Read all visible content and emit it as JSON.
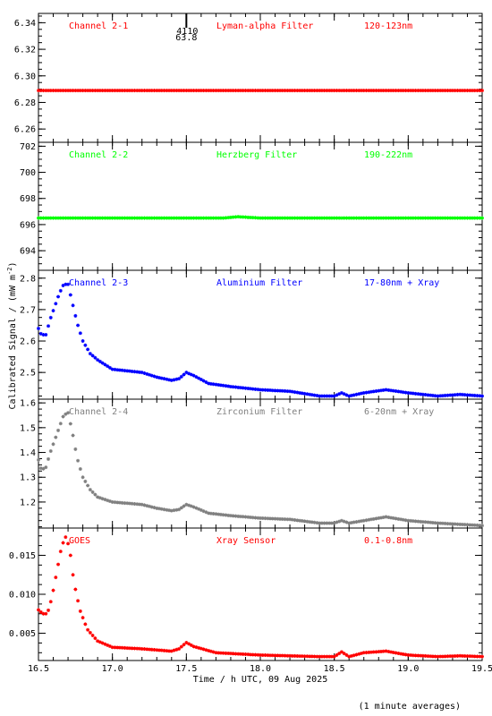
{
  "chart_data": {
    "type": "scatter",
    "xlabel": "Time / h UTC, 09 Aug 2025",
    "ylabel": "Calibrated Signal / (mW m",
    "ylabel_sup": "-2",
    "ylabel_close": ")",
    "footnote": "(1 minute averages)",
    "xlim": [
      16.5,
      19.5
    ],
    "xticks": [
      16.5,
      17.0,
      17.5,
      18.0,
      18.5,
      19.0,
      19.5
    ],
    "xtick_labels": [
      "16.5",
      "17.0",
      "17.5",
      "18.0",
      "18.5",
      "19.0",
      "19.5"
    ],
    "panels": [
      {
        "channel": "Channel 2-1",
        "filter": "Lyman-alpha Filter",
        "band": "120-123nm",
        "color": "#ff0000",
        "ylim": [
          6.25,
          6.347
        ],
        "yticks": [
          6.26,
          6.28,
          6.3,
          6.32,
          6.34
        ],
        "ytick_labels": [
          "6.26",
          "6.28",
          "6.30",
          "6.32",
          "6.34"
        ],
        "marker": {
          "x": 17.5,
          "label_top": "4110",
          "label_bottom": "63.8"
        },
        "points": [
          [
            16.5,
            6.289
          ],
          [
            16.75,
            6.289
          ],
          [
            17.0,
            6.289
          ],
          [
            17.25,
            6.289
          ],
          [
            17.5,
            6.289
          ],
          [
            17.75,
            6.289
          ],
          [
            18.0,
            6.289
          ],
          [
            18.25,
            6.289
          ],
          [
            18.5,
            6.289
          ],
          [
            18.75,
            6.289
          ],
          [
            19.0,
            6.289
          ],
          [
            19.25,
            6.289
          ],
          [
            19.5,
            6.289
          ]
        ]
      },
      {
        "channel": "Channel 2-2",
        "filter": "Herzberg Filter",
        "band": "190-222nm",
        "color": "#00ff00",
        "ylim": [
          692.5,
          702.3
        ],
        "yticks": [
          694,
          696,
          698,
          700,
          702
        ],
        "ytick_labels": [
          "694",
          "696",
          "698",
          "700",
          "702"
        ],
        "points": [
          [
            16.5,
            696.5
          ],
          [
            16.75,
            696.5
          ],
          [
            17.0,
            696.5
          ],
          [
            17.25,
            696.5
          ],
          [
            17.5,
            696.5
          ],
          [
            17.75,
            696.5
          ],
          [
            17.85,
            696.6
          ],
          [
            18.0,
            696.5
          ],
          [
            18.25,
            696.5
          ],
          [
            18.5,
            696.5
          ],
          [
            18.75,
            696.5
          ],
          [
            19.0,
            696.5
          ],
          [
            19.25,
            696.5
          ],
          [
            19.5,
            696.5
          ]
        ]
      },
      {
        "channel": "Channel 2-3",
        "filter": "Aluminium Filter",
        "band": "17-80nm + Xray",
        "color": "#0000ff",
        "ylim": [
          2.415,
          2.825
        ],
        "yticks": [
          2.5,
          2.6,
          2.7,
          2.8
        ],
        "ytick_labels": [
          "2.5",
          "2.6",
          "2.7",
          "2.8"
        ],
        "points": [
          [
            16.5,
            2.64
          ],
          [
            16.52,
            2.62
          ],
          [
            16.55,
            2.62
          ],
          [
            16.58,
            2.67
          ],
          [
            16.61,
            2.71
          ],
          [
            16.64,
            2.75
          ],
          [
            16.67,
            2.78
          ],
          [
            16.7,
            2.78
          ],
          [
            16.73,
            2.72
          ],
          [
            16.76,
            2.66
          ],
          [
            16.8,
            2.6
          ],
          [
            16.85,
            2.56
          ],
          [
            16.9,
            2.54
          ],
          [
            17.0,
            2.51
          ],
          [
            17.1,
            2.505
          ],
          [
            17.2,
            2.5
          ],
          [
            17.3,
            2.485
          ],
          [
            17.4,
            2.475
          ],
          [
            17.45,
            2.48
          ],
          [
            17.5,
            2.5
          ],
          [
            17.55,
            2.49
          ],
          [
            17.65,
            2.465
          ],
          [
            17.8,
            2.455
          ],
          [
            18.0,
            2.445
          ],
          [
            18.2,
            2.44
          ],
          [
            18.4,
            2.425
          ],
          [
            18.5,
            2.425
          ],
          [
            18.55,
            2.435
          ],
          [
            18.6,
            2.425
          ],
          [
            18.7,
            2.435
          ],
          [
            18.85,
            2.445
          ],
          [
            19.0,
            2.435
          ],
          [
            19.2,
            2.425
          ],
          [
            19.35,
            2.43
          ],
          [
            19.5,
            2.425
          ]
        ]
      },
      {
        "channel": "Channel 2-4",
        "filter": "Zirconium Filter",
        "band": "6-20nm + Xray",
        "color": "#808080",
        "ylim": [
          1.095,
          1.615
        ],
        "yticks": [
          1.2,
          1.3,
          1.4,
          1.5,
          1.6
        ],
        "ytick_labels": [
          "1.2",
          "1.3",
          "1.4",
          "1.5",
          "1.6"
        ],
        "points": [
          [
            16.5,
            1.37
          ],
          [
            16.52,
            1.33
          ],
          [
            16.55,
            1.34
          ],
          [
            16.58,
            1.4
          ],
          [
            16.61,
            1.45
          ],
          [
            16.64,
            1.5
          ],
          [
            16.67,
            1.55
          ],
          [
            16.7,
            1.56
          ],
          [
            16.73,
            1.48
          ],
          [
            16.76,
            1.38
          ],
          [
            16.8,
            1.3
          ],
          [
            16.85,
            1.25
          ],
          [
            16.9,
            1.22
          ],
          [
            17.0,
            1.2
          ],
          [
            17.2,
            1.19
          ],
          [
            17.3,
            1.175
          ],
          [
            17.4,
            1.165
          ],
          [
            17.45,
            1.17
          ],
          [
            17.5,
            1.19
          ],
          [
            17.55,
            1.18
          ],
          [
            17.65,
            1.155
          ],
          [
            17.8,
            1.145
          ],
          [
            18.0,
            1.135
          ],
          [
            18.2,
            1.13
          ],
          [
            18.4,
            1.115
          ],
          [
            18.5,
            1.115
          ],
          [
            18.55,
            1.125
          ],
          [
            18.6,
            1.115
          ],
          [
            18.7,
            1.125
          ],
          [
            18.85,
            1.14
          ],
          [
            19.0,
            1.125
          ],
          [
            19.2,
            1.115
          ],
          [
            19.35,
            1.11
          ],
          [
            19.5,
            1.105
          ]
        ]
      },
      {
        "channel": "GOES",
        "filter": "Xray Sensor",
        "band": "0.1-0.8nm",
        "color": "#ff0000",
        "ylim": [
          0.0015,
          0.0185
        ],
        "yticks": [
          0.005,
          0.01,
          0.015
        ],
        "ytick_labels": [
          "0.005",
          "0.010",
          "0.015"
        ],
        "points": [
          [
            16.5,
            0.008
          ],
          [
            16.53,
            0.0075
          ],
          [
            16.56,
            0.0075
          ],
          [
            16.59,
            0.0095
          ],
          [
            16.62,
            0.0125
          ],
          [
            16.65,
            0.0155
          ],
          [
            16.68,
            0.0175
          ],
          [
            16.71,
            0.016
          ],
          [
            16.74,
            0.0115
          ],
          [
            16.78,
            0.008
          ],
          [
            16.83,
            0.0055
          ],
          [
            16.9,
            0.004
          ],
          [
            17.0,
            0.0032
          ],
          [
            17.2,
            0.003
          ],
          [
            17.4,
            0.0027
          ],
          [
            17.45,
            0.003
          ],
          [
            17.5,
            0.0038
          ],
          [
            17.55,
            0.0033
          ],
          [
            17.7,
            0.0025
          ],
          [
            18.0,
            0.0022
          ],
          [
            18.2,
            0.0021
          ],
          [
            18.4,
            0.002
          ],
          [
            18.5,
            0.002
          ],
          [
            18.55,
            0.0026
          ],
          [
            18.6,
            0.002
          ],
          [
            18.7,
            0.0025
          ],
          [
            18.85,
            0.0027
          ],
          [
            19.0,
            0.0022
          ],
          [
            19.2,
            0.002
          ],
          [
            19.35,
            0.0021
          ],
          [
            19.5,
            0.002
          ]
        ]
      }
    ]
  }
}
